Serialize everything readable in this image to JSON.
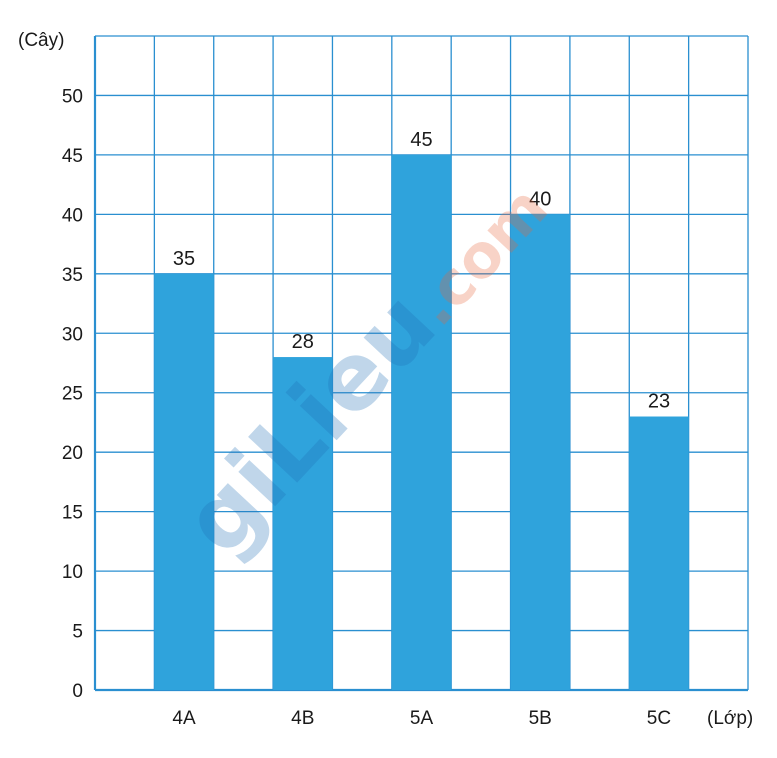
{
  "chart_data": {
    "type": "bar",
    "title": "",
    "xlabel": "(Lớp)",
    "ylabel": "(Cây)",
    "categories": [
      "4A",
      "4B",
      "5A",
      "5B",
      "5C"
    ],
    "values": [
      35,
      28,
      45,
      40,
      23
    ],
    "data_labels": [
      "35",
      "28",
      "45",
      "40",
      "23"
    ],
    "ylim": [
      0,
      55
    ],
    "yticks": [
      0,
      5,
      10,
      15,
      20,
      25,
      30,
      35,
      40,
      45,
      50
    ],
    "grid": true,
    "legend": "none"
  },
  "watermark": {
    "text_main": "giLieu",
    "text_suffix": ".com"
  },
  "colors": {
    "bar": "#2fa3dc",
    "grid": "#2a8fd0",
    "axis": "#2a8fd0",
    "watermark_main": "#1f6fb5",
    "watermark_suffix": "#e8643a"
  }
}
